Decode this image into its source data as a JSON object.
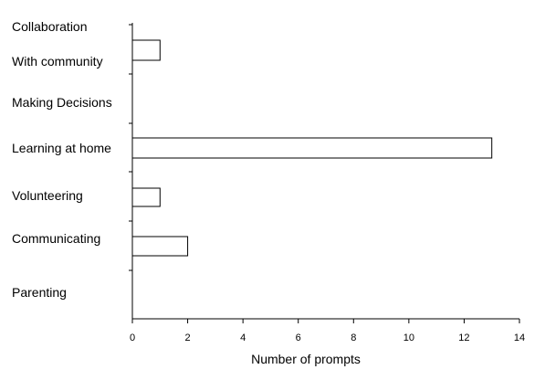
{
  "chart_data": {
    "type": "bar",
    "orientation": "horizontal",
    "categories": [
      "Collaboration",
      "With community",
      "Making Decisions",
      "Learning at home",
      "Volunteering",
      "Communicating",
      "Parenting"
    ],
    "values": [
      null,
      1,
      0,
      13,
      1,
      2,
      0
    ],
    "xlabel": "Number of prompts",
    "ylabel": "",
    "xlim": [
      0,
      14
    ],
    "xticks": [
      "0",
      "2",
      "4",
      "6",
      "8",
      "10",
      "12",
      "14"
    ],
    "grid": false,
    "legend": "none",
    "colors": {
      "bar_fill": "#ffffff",
      "bar_stroke": "#000000"
    }
  }
}
